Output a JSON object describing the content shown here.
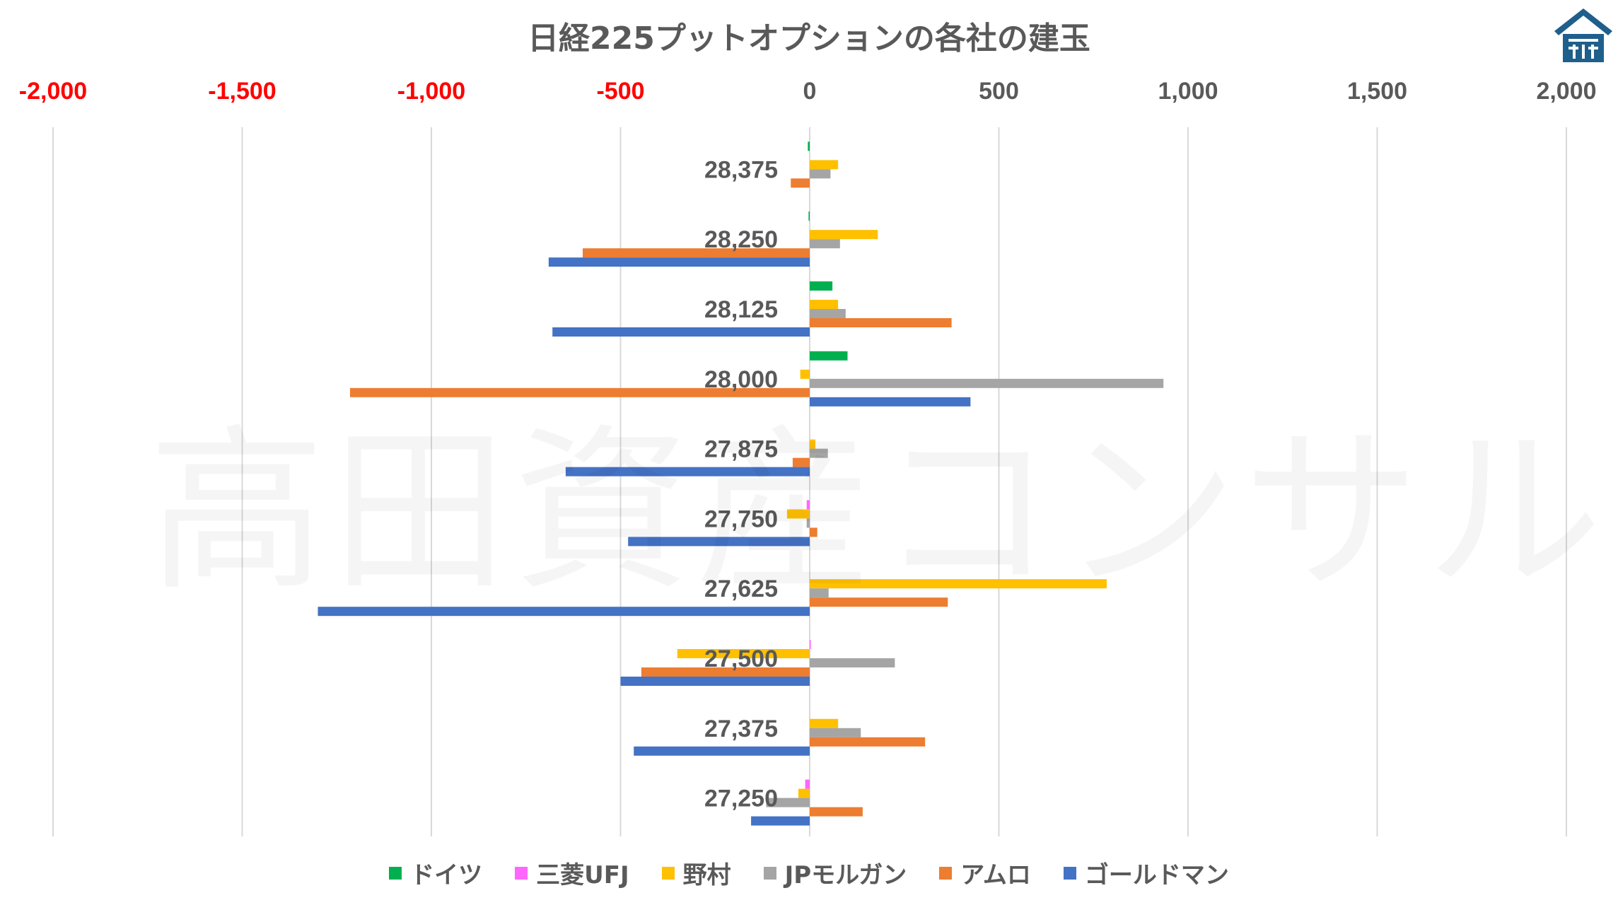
{
  "chart_data": {
    "type": "bar",
    "orientation": "horizontal",
    "title": "日経225プットオプションの各社の建玉",
    "watermark": "高田資産コンサル",
    "xlim": [
      -2000,
      2000
    ],
    "x_ticks": [
      {
        "value": -2000,
        "label": "-2,000",
        "color": "#ff0000"
      },
      {
        "value": -1500,
        "label": "-1,500",
        "color": "#ff0000"
      },
      {
        "value": -1000,
        "label": "-1,000",
        "color": "#ff0000"
      },
      {
        "value": -500,
        "label": "-500",
        "color": "#ff0000"
      },
      {
        "value": 0,
        "label": "0",
        "color": "#595959"
      },
      {
        "value": 500,
        "label": "500",
        "color": "#595959"
      },
      {
        "value": 1000,
        "label": "1,000",
        "color": "#595959"
      },
      {
        "value": 1500,
        "label": "1,500",
        "color": "#595959"
      },
      {
        "value": 2000,
        "label": "2,000",
        "color": "#595959"
      }
    ],
    "grid": true,
    "legend_position": "bottom",
    "categories": [
      "28,375",
      "28,250",
      "28,125",
      "28,000",
      "27,875",
      "27,750",
      "27,625",
      "27,500",
      "27,375",
      "27,250"
    ],
    "series": [
      {
        "name": "ドイツ",
        "color": "#00b050",
        "values": [
          -5,
          -3,
          60,
          100,
          0,
          0,
          0,
          0,
          0,
          0
        ]
      },
      {
        "name": "三菱UFJ",
        "color": "#ff66ff",
        "values": [
          0,
          0,
          0,
          0,
          0,
          -8,
          0,
          2,
          0,
          -12
        ]
      },
      {
        "name": "野村",
        "color": "#ffc000",
        "values": [
          75,
          180,
          75,
          -25,
          15,
          -60,
          785,
          -350,
          75,
          -30
        ]
      },
      {
        "name": "JPモルガン",
        "color": "#a5a5a5",
        "values": [
          55,
          80,
          95,
          935,
          48,
          -8,
          50,
          225,
          135,
          -115
        ]
      },
      {
        "name": "アムロ",
        "color": "#ed7d31",
        "values": [
          -50,
          -600,
          375,
          -1215,
          -45,
          20,
          365,
          -445,
          305,
          140
        ]
      },
      {
        "name": "ゴールドマン",
        "color": "#4472c4",
        "values": [
          0,
          -690,
          -680,
          425,
          -645,
          -480,
          -1300,
          -500,
          -465,
          -155
        ]
      }
    ]
  },
  "logo": {
    "name": "company-logo",
    "color": "#1f5f8b"
  }
}
